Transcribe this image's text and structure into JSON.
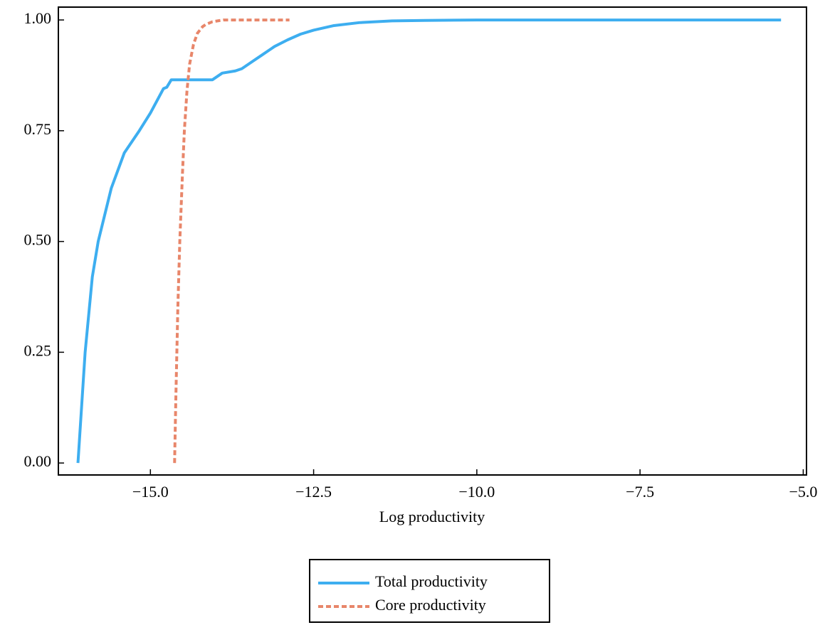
{
  "chart_data": {
    "type": "line",
    "x_label": "Log productivity",
    "xlim": [
      -16.41,
      -4.95
    ],
    "ylim": [
      -0.027,
      1.029
    ],
    "xticks": [
      {
        "value": -15,
        "label": "−15.0"
      },
      {
        "value": -12.5,
        "label": "−12.5"
      },
      {
        "value": -10,
        "label": "−10.0"
      },
      {
        "value": -7.5,
        "label": "−7.5"
      },
      {
        "value": -5,
        "label": "−5.0"
      }
    ],
    "yticks": [
      {
        "value": 0,
        "label": "0.00"
      },
      {
        "value": 0.25,
        "label": "0.25"
      },
      {
        "value": 0.5,
        "label": "0.50"
      },
      {
        "value": 0.75,
        "label": "0.75"
      },
      {
        "value": 1,
        "label": "1.00"
      }
    ],
    "grid": false,
    "legend": "bottom",
    "series": [
      {
        "name": "Total productivity",
        "color": "#3daef0",
        "dash": "solid",
        "x": [
          -16.11,
          -16.0,
          -15.89,
          -15.8,
          -15.6,
          -15.4,
          -15.17,
          -15.0,
          -14.8,
          -14.75,
          -14.68,
          -14.05,
          -13.9,
          -13.7,
          -13.6,
          -13.45,
          -13.3,
          -13.1,
          -12.9,
          -12.7,
          -12.5,
          -12.2,
          -11.8,
          -11.3,
          -10.8,
          -10.0,
          -8.0,
          -5.34
        ],
        "values": [
          0,
          0.25,
          0.42,
          0.5,
          0.62,
          0.7,
          0.75,
          0.79,
          0.845,
          0.848,
          0.865,
          0.865,
          0.88,
          0.885,
          0.89,
          0.905,
          0.92,
          0.94,
          0.955,
          0.968,
          0.977,
          0.987,
          0.994,
          0.998,
          0.999,
          1,
          1,
          1
        ]
      },
      {
        "name": "Core productivity",
        "color": "#e8866a",
        "dash": "dashed",
        "x": [
          -14.63,
          -14.61,
          -14.58,
          -14.55,
          -14.51,
          -14.48,
          -14.44,
          -14.4,
          -14.34,
          -14.28,
          -14.2,
          -14.15,
          -14.05,
          -13.88,
          -13.5,
          -12.87
        ],
        "values": [
          0,
          0.15,
          0.35,
          0.5,
          0.65,
          0.75,
          0.84,
          0.9,
          0.945,
          0.97,
          0.985,
          0.99,
          0.996,
          1,
          1,
          1
        ]
      }
    ]
  }
}
